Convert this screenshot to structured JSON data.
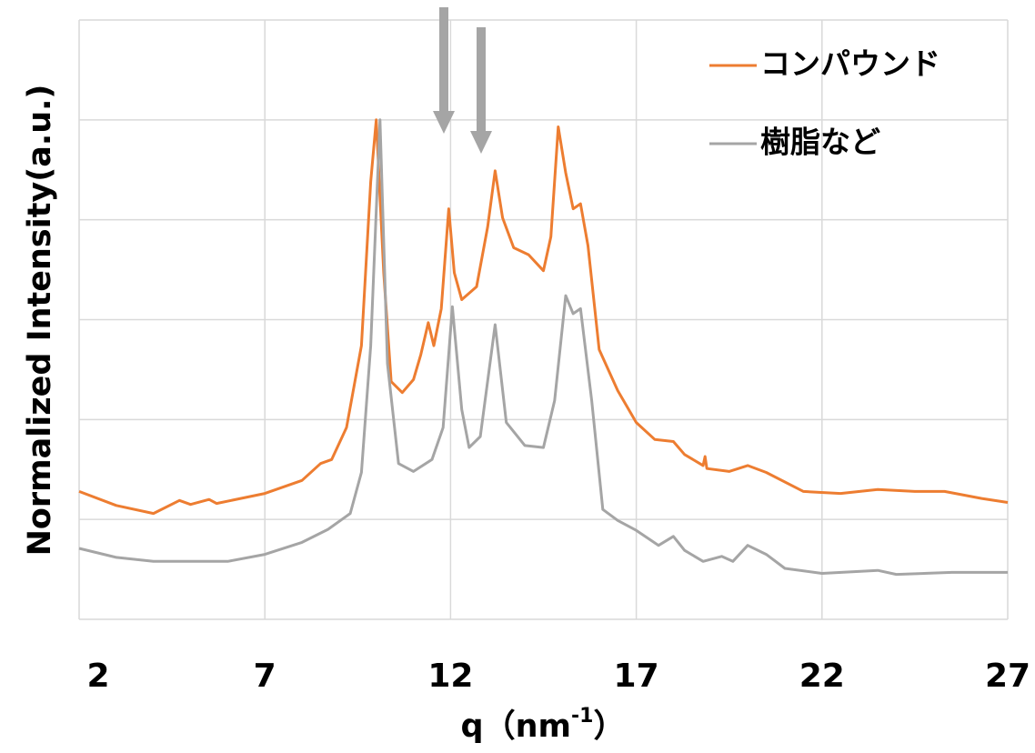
{
  "chart_data": {
    "type": "line",
    "ylabel": "Normalized Intensity(a.u.)",
    "xlabel_parts": [
      "q（nm",
      "-1",
      "）"
    ],
    "xlim": [
      2,
      27
    ],
    "xticks": [
      2,
      7,
      12,
      17,
      22,
      27
    ],
    "ylim": [
      0,
      6
    ],
    "yticks": [
      0,
      1,
      2,
      3,
      4,
      5,
      6
    ],
    "y_tick_labels": false,
    "grid": true,
    "legend": "top-right",
    "series": [
      {
        "name": "コンパウンド",
        "color": "#ed7d31",
        "x": [
          2,
          3,
          4,
          4.7,
          5,
          5.5,
          5.7,
          7,
          8,
          8.5,
          8.8,
          9.2,
          9.6,
          9.85,
          10.0,
          10.2,
          10.4,
          10.7,
          11.0,
          11.2,
          11.4,
          11.55,
          11.75,
          11.95,
          12.1,
          12.3,
          12.7,
          13.0,
          13.2,
          13.4,
          13.7,
          14.1,
          14.5,
          14.7,
          14.9,
          15.1,
          15.3,
          15.5,
          15.7,
          16.0,
          16.5,
          17.0,
          17.5,
          18.0,
          18.3,
          18.8,
          18.85,
          18.9,
          19.5,
          20.0,
          20.5,
          21.5,
          22.5,
          23.5,
          24.5,
          25.3,
          26.3,
          27
        ],
        "values": [
          1.28,
          1.14,
          1.06,
          1.19,
          1.15,
          1.2,
          1.16,
          1.26,
          1.39,
          1.56,
          1.6,
          1.92,
          2.74,
          4.38,
          5.0,
          3.47,
          2.38,
          2.27,
          2.4,
          2.65,
          2.97,
          2.74,
          3.11,
          4.11,
          3.47,
          3.2,
          3.33,
          3.93,
          4.49,
          4.02,
          3.72,
          3.65,
          3.49,
          3.83,
          4.93,
          4.47,
          4.11,
          4.16,
          3.74,
          2.7,
          2.29,
          1.97,
          1.8,
          1.78,
          1.65,
          1.54,
          1.63,
          1.51,
          1.48,
          1.54,
          1.47,
          1.28,
          1.26,
          1.3,
          1.28,
          1.28,
          1.21,
          1.17
        ]
      },
      {
        "name": "樹脂など",
        "color": "#a5a5a5",
        "x": [
          2,
          3,
          4,
          6,
          7,
          8,
          8.7,
          9.3,
          9.6,
          9.85,
          10.1,
          10.3,
          10.6,
          11.0,
          11.5,
          11.8,
          12.05,
          12.3,
          12.5,
          12.8,
          13.2,
          13.5,
          14.0,
          14.5,
          14.8,
          15.1,
          15.3,
          15.5,
          15.8,
          16.1,
          16.5,
          17.0,
          17.6,
          18.0,
          18.3,
          18.8,
          19.3,
          19.6,
          20.0,
          20.5,
          21.0,
          22.0,
          23.5,
          24.0,
          25.5,
          27
        ],
        "values": [
          0.71,
          0.62,
          0.58,
          0.58,
          0.65,
          0.77,
          0.9,
          1.06,
          1.47,
          2.74,
          5.0,
          2.56,
          1.56,
          1.48,
          1.6,
          1.92,
          3.13,
          2.1,
          1.72,
          1.83,
          2.95,
          1.97,
          1.74,
          1.72,
          2.19,
          3.24,
          3.06,
          3.11,
          2.19,
          1.1,
          0.99,
          0.89,
          0.74,
          0.83,
          0.69,
          0.58,
          0.63,
          0.58,
          0.74,
          0.65,
          0.51,
          0.46,
          0.49,
          0.45,
          0.47,
          0.47
        ]
      }
    ]
  }
}
